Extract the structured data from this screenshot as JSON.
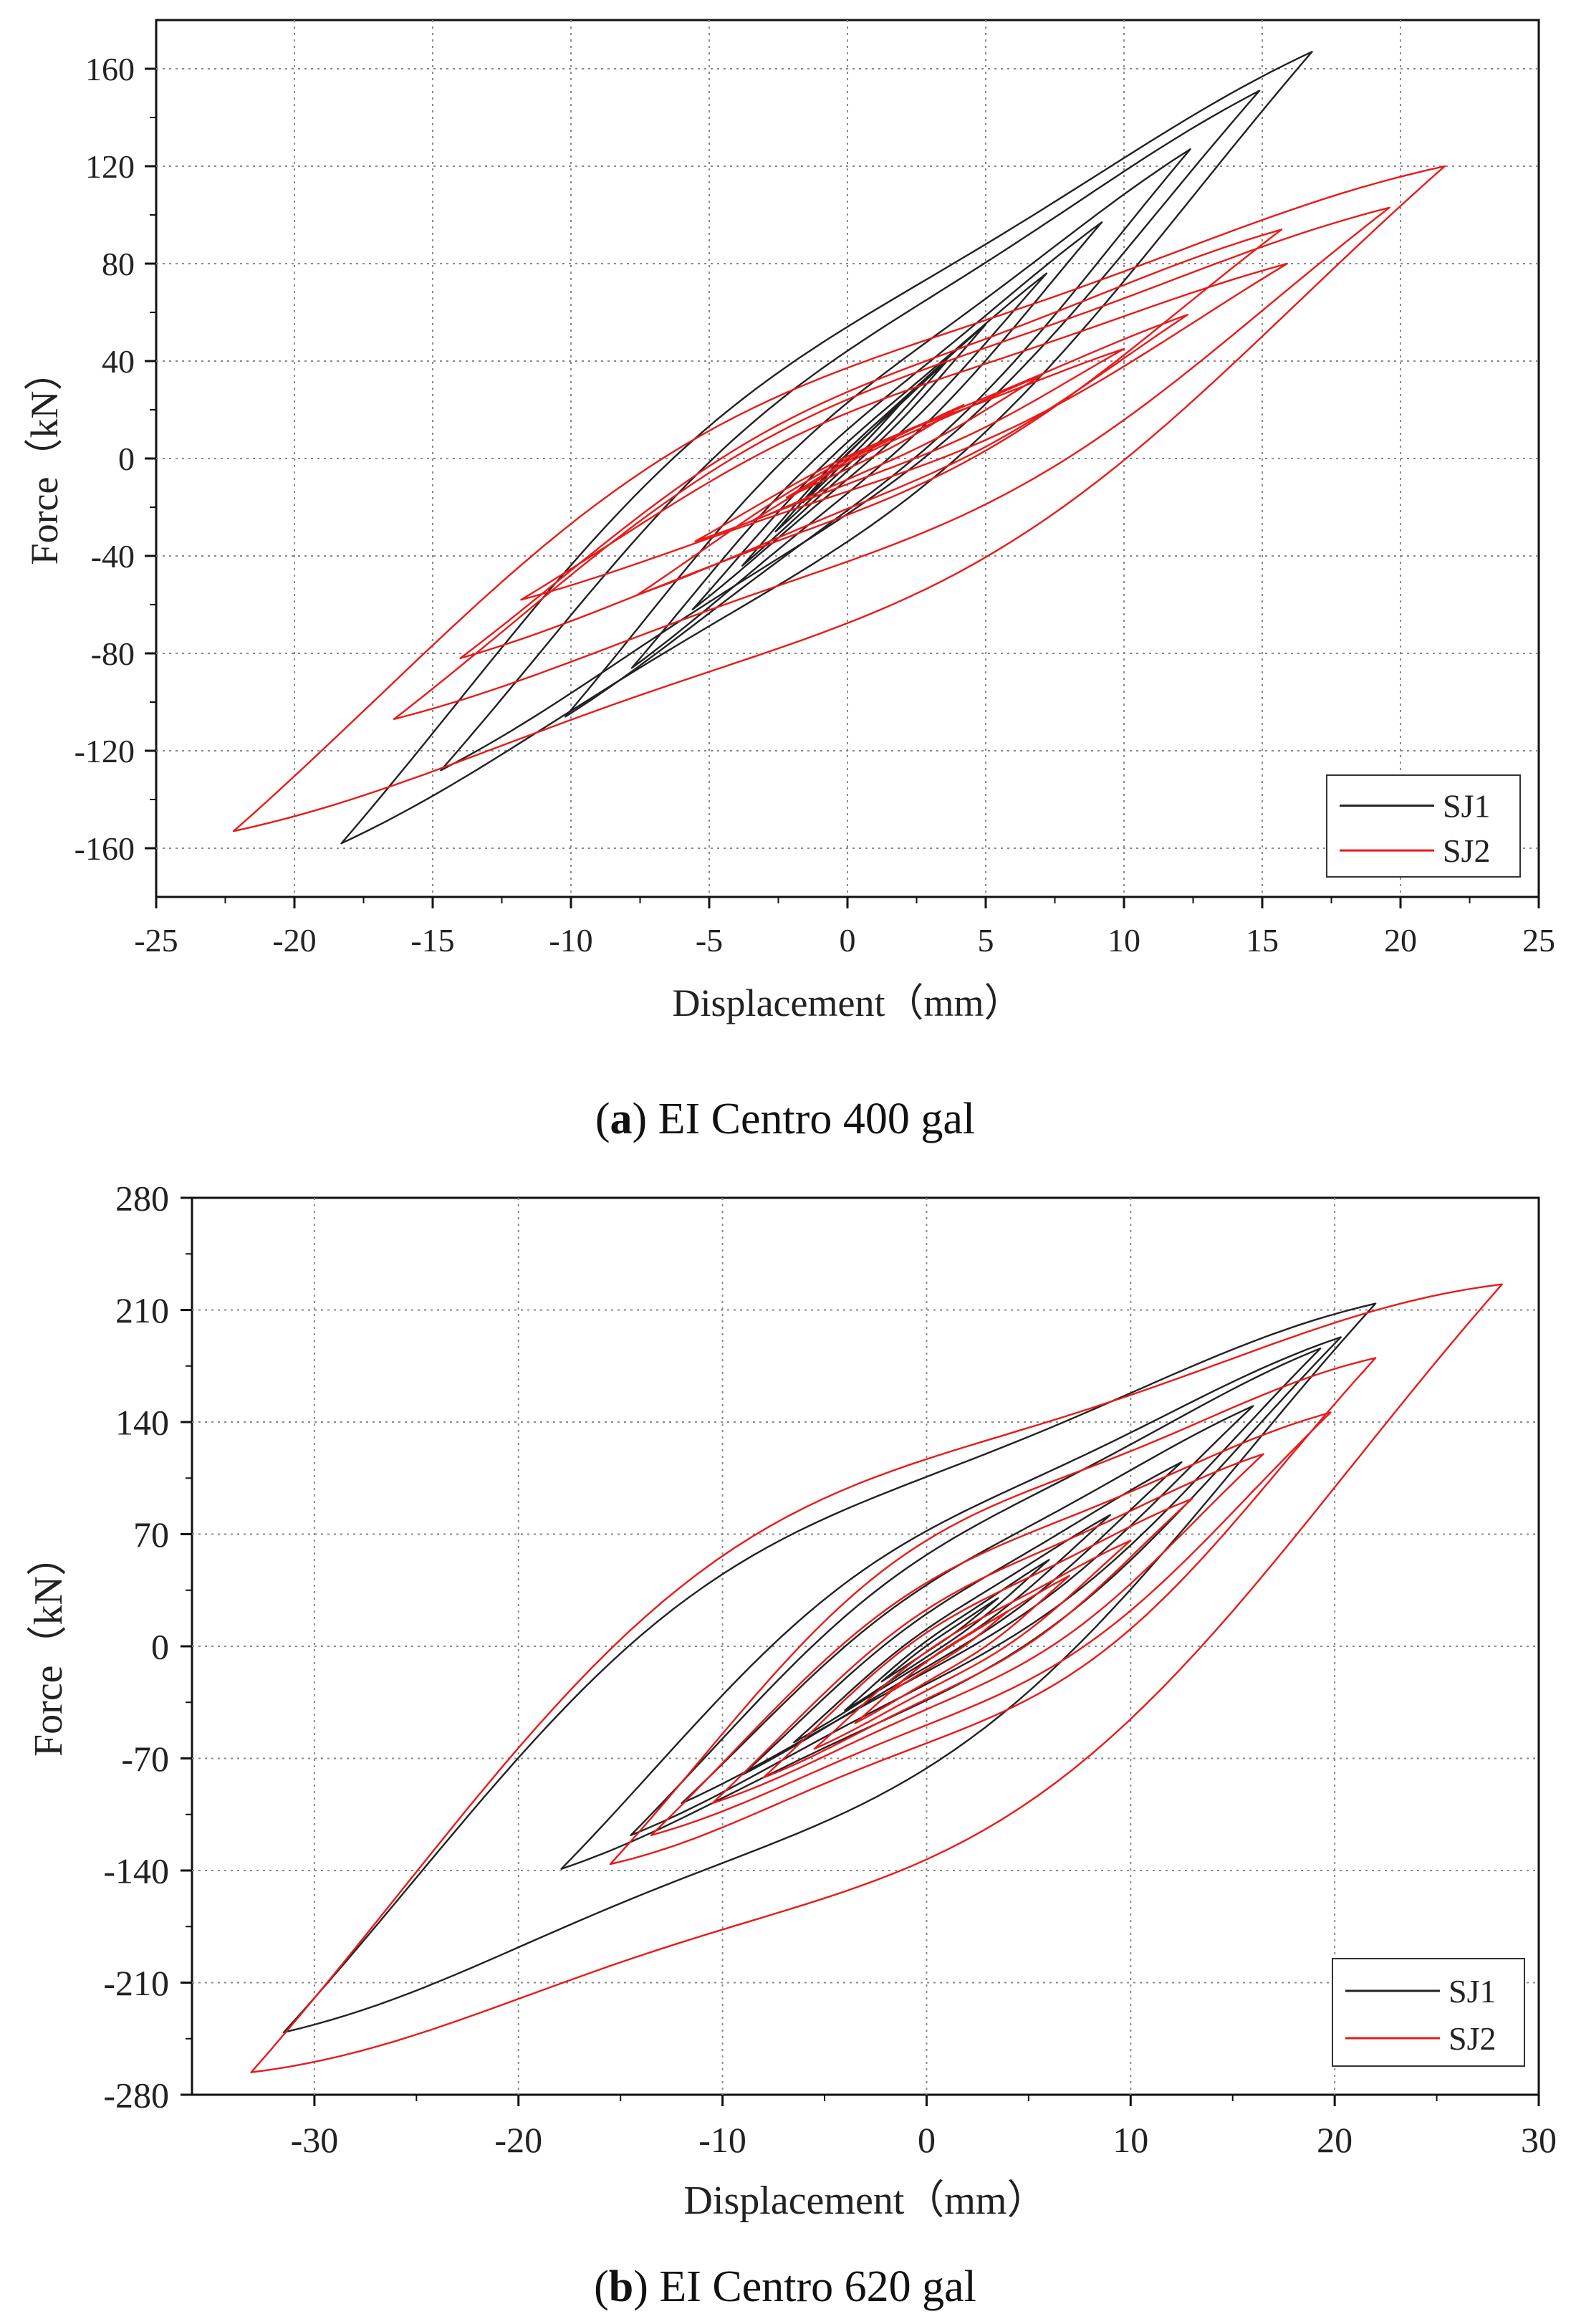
{
  "chart_data": [
    {
      "type": "line",
      "panel": "a",
      "caption_letter": "a",
      "caption_text": ") EI Centro 400 gal",
      "caption_open": "(",
      "xlabel": "Displacement（mm）",
      "ylabel": "Force（kN）",
      "xlim": [
        -25,
        25
      ],
      "ylim": [
        -180,
        180
      ],
      "xticks": [
        -25,
        -20,
        -15,
        -10,
        -5,
        0,
        5,
        10,
        15,
        20,
        25
      ],
      "yticks": [
        -160,
        -120,
        -80,
        -40,
        0,
        40,
        80,
        120,
        160
      ],
      "grid": true,
      "legend_position": "bottom-right",
      "series": [
        {
          "name": "SJ1",
          "color": "#222222",
          "loops": [
            {
              "max": [
                16.8,
                167
              ],
              "min": [
                -18.3,
                -158
              ],
              "width": 0.85
            },
            {
              "max": [
                14.9,
                151
              ],
              "min": [
                -14.7,
                -128
              ],
              "width": 0.75
            },
            {
              "max": [
                12.4,
                127
              ],
              "min": [
                -10.2,
                -106
              ],
              "width": 0.6
            },
            {
              "max": [
                9.2,
                97
              ],
              "min": [
                -7.8,
                -86
              ],
              "width": 0.45
            },
            {
              "max": [
                7.2,
                76
              ],
              "min": [
                -5.6,
                -62
              ],
              "width": 0.35
            },
            {
              "max": [
                5.0,
                55
              ],
              "min": [
                -3.8,
                -44
              ],
              "width": 0.28
            },
            {
              "max": [
                3.6,
                40
              ],
              "min": [
                -2.6,
                -30
              ],
              "width": 0.22
            },
            {
              "max": [
                2.2,
                26
              ],
              "min": [
                -1.6,
                -18
              ],
              "width": 0.16
            }
          ]
        },
        {
          "name": "SJ2",
          "color": "#e81a1a",
          "loops": [
            {
              "max": [
                21.6,
                120
              ],
              "min": [
                -22.2,
                -153
              ],
              "width": 1.2
            },
            {
              "max": [
                19.6,
                103
              ],
              "min": [
                -16.4,
                -107
              ],
              "width": 1.0
            },
            {
              "max": [
                15.7,
                94
              ],
              "min": [
                -14.0,
                -82
              ],
              "width": 0.9
            },
            {
              "max": [
                15.9,
                80
              ],
              "min": [
                -11.8,
                -58
              ],
              "width": 0.75
            },
            {
              "max": [
                12.3,
                59
              ],
              "min": [
                -7.6,
                -56
              ],
              "width": 0.6
            },
            {
              "max": [
                10.0,
                45
              ],
              "min": [
                -5.5,
                -34
              ],
              "width": 0.5
            },
            {
              "max": [
                7.0,
                34
              ],
              "min": [
                -3.5,
                -26
              ],
              "width": 0.4
            },
            {
              "max": [
                4.2,
                22
              ],
              "min": [
                -2.2,
                -16
              ],
              "width": 0.3
            }
          ]
        }
      ]
    },
    {
      "type": "line",
      "panel": "b",
      "caption_letter": "b",
      "caption_text": ") EI Centro 620 gal",
      "caption_open": "(",
      "xlabel": "Displacement（mm）",
      "ylabel": "Force（kN）",
      "xlim": [
        -36,
        30
      ],
      "ylim": [
        -280,
        280
      ],
      "xticks": [
        -30,
        -20,
        -10,
        0,
        10,
        20,
        30
      ],
      "yticks": [
        -280,
        -210,
        -140,
        -70,
        0,
        70,
        140,
        210,
        280
      ],
      "grid": true,
      "legend_position": "bottom-right",
      "series": [
        {
          "name": "SJ1",
          "color": "#222222",
          "loops": [
            {
              "max": [
                22.0,
                214
              ],
              "min": [
                -31.5,
                -241
              ],
              "width": 1.3
            },
            {
              "max": [
                20.3,
                193
              ],
              "min": [
                -17.9,
                -139
              ],
              "width": 1.0
            },
            {
              "max": [
                19.3,
                186
              ],
              "min": [
                -14.5,
                -118
              ],
              "width": 0.85
            },
            {
              "max": [
                16.0,
                150
              ],
              "min": [
                -12.0,
                -98
              ],
              "width": 0.7
            },
            {
              "max": [
                12.5,
                115
              ],
              "min": [
                -9.0,
                -80
              ],
              "width": 0.55
            },
            {
              "max": [
                9.0,
                82
              ],
              "min": [
                -6.5,
                -60
              ],
              "width": 0.45
            },
            {
              "max": [
                6.0,
                54
              ],
              "min": [
                -4.0,
                -40
              ],
              "width": 0.35
            },
            {
              "max": [
                3.5,
                30
              ],
              "min": [
                -2.2,
                -22
              ],
              "width": 0.25
            }
          ]
        },
        {
          "name": "SJ2",
          "color": "#e81a1a",
          "loops": [
            {
              "max": [
                28.2,
                226
              ],
              "min": [
                -33.1,
                -266
              ],
              "width": 1.6
            },
            {
              "max": [
                22.0,
                180
              ],
              "min": [
                -15.5,
                -136
              ],
              "width": 1.3
            },
            {
              "max": [
                19.8,
                146
              ],
              "min": [
                -13.5,
                -118
              ],
              "width": 1.1
            },
            {
              "max": [
                16.5,
                120
              ],
              "min": [
                -10.5,
                -98
              ],
              "width": 0.95
            },
            {
              "max": [
                13.0,
                92
              ],
              "min": [
                -8.0,
                -82
              ],
              "width": 0.8
            },
            {
              "max": [
                10.0,
                66
              ],
              "min": [
                -5.5,
                -64
              ],
              "width": 0.65
            },
            {
              "max": [
                7.0,
                44
              ],
              "min": [
                -3.5,
                -48
              ],
              "width": 0.5
            },
            {
              "max": [
                4.0,
                22
              ],
              "min": [
                -2.0,
                -30
              ],
              "width": 0.35
            }
          ]
        }
      ]
    }
  ]
}
